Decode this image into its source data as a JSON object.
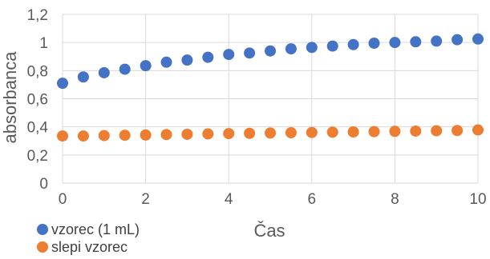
{
  "chart_data": {
    "type": "scatter",
    "xlabel": "Čas",
    "ylabel": "absorbanca",
    "xlim": [
      0,
      10
    ],
    "ylim": [
      0,
      1.2
    ],
    "xticks": [
      "0",
      "2",
      "4",
      "6",
      "8",
      "10"
    ],
    "yticks": [
      "0",
      "0,2",
      "0,4",
      "0,6",
      "0,8",
      "1",
      "1,2"
    ],
    "grid": true,
    "legend_position": "bottom-left",
    "x": [
      0,
      0.5,
      1,
      1.5,
      2,
      2.5,
      3,
      3.5,
      4,
      4.5,
      5,
      5.5,
      6,
      6.5,
      7,
      7.5,
      8,
      8.5,
      9,
      9.5,
      10
    ],
    "series": [
      {
        "name": "vzorec (1 mL)",
        "color": "#4472C4",
        "values": [
          0.71,
          0.755,
          0.785,
          0.81,
          0.835,
          0.86,
          0.875,
          0.895,
          0.915,
          0.925,
          0.94,
          0.955,
          0.965,
          0.975,
          0.985,
          0.995,
          1.0,
          1.005,
          1.01,
          1.02,
          1.025
        ]
      },
      {
        "name": "slepi vzorec",
        "color": "#ED7D31",
        "values": [
          0.335,
          0.335,
          0.338,
          0.34,
          0.342,
          0.345,
          0.347,
          0.35,
          0.352,
          0.354,
          0.356,
          0.358,
          0.36,
          0.362,
          0.364,
          0.366,
          0.368,
          0.37,
          0.372,
          0.374,
          0.378
        ]
      }
    ]
  }
}
